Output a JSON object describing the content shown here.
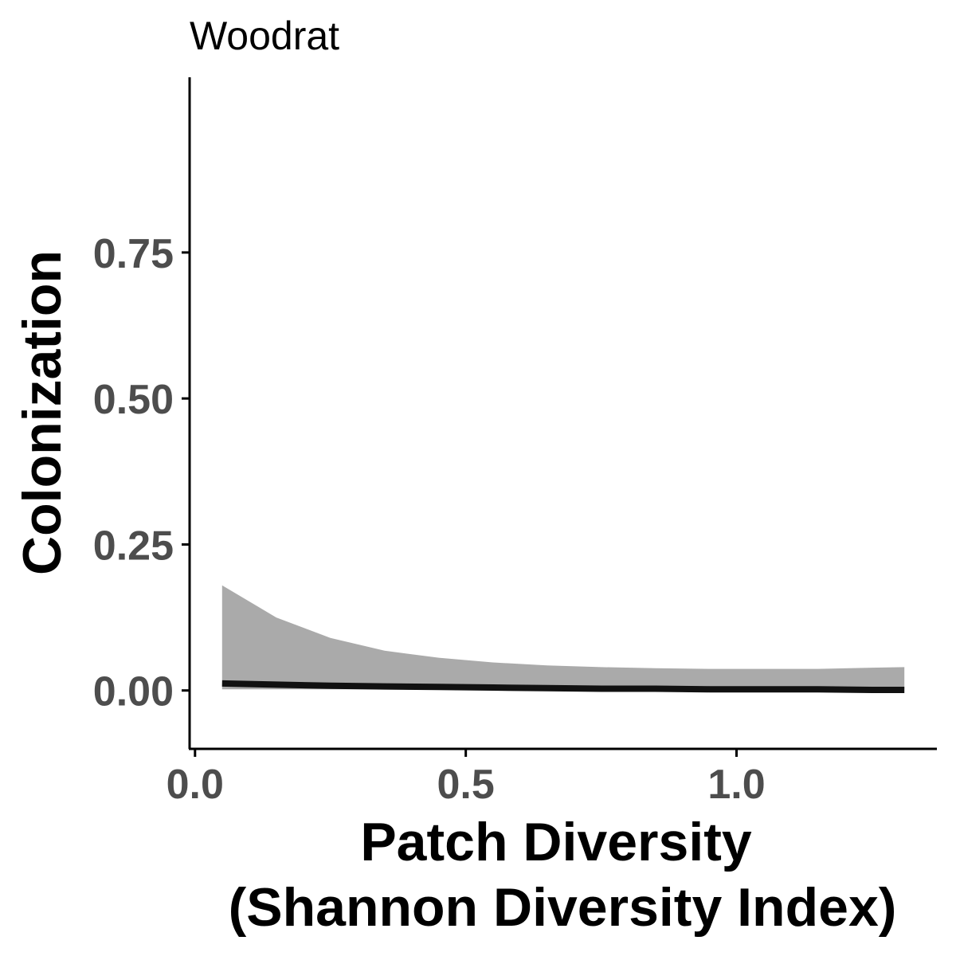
{
  "chart_data": {
    "type": "line",
    "title": "Woodrat",
    "xlabel_lines": [
      "Patch Diversity",
      "(Shannon Diversity Index)"
    ],
    "ylabel": "Colonization",
    "xlim": [
      -0.01,
      1.37
    ],
    "ylim": [
      -0.1,
      1.05
    ],
    "x_ticks": [
      0.0,
      0.5,
      1.0
    ],
    "x_tick_labels": [
      "0.0",
      "0.5",
      "1.0"
    ],
    "y_ticks": [
      0.0,
      0.25,
      0.5,
      0.75
    ],
    "y_tick_labels": [
      "0.00",
      "0.25",
      "0.50",
      "0.75"
    ],
    "grid": false,
    "legend": "none",
    "series": [
      {
        "x": [
          0.05,
          0.15,
          0.25,
          0.35,
          0.45,
          0.55,
          0.65,
          0.75,
          0.85,
          0.95,
          1.05,
          1.15,
          1.25,
          1.31
        ],
        "y": [
          0.012,
          0.01,
          0.008,
          0.007,
          0.006,
          0.005,
          0.004,
          0.003,
          0.003,
          0.002,
          0.002,
          0.002,
          0.001,
          0.001
        ],
        "lower": [
          0.002,
          0.002,
          0.002,
          0.002,
          0.002,
          0.002,
          0.002,
          0.002,
          0.002,
          0.002,
          0.002,
          0.002,
          0.002,
          0.002
        ],
        "upper": [
          0.18,
          0.125,
          0.09,
          0.068,
          0.056,
          0.048,
          0.043,
          0.04,
          0.038,
          0.037,
          0.037,
          0.037,
          0.039,
          0.04
        ]
      }
    ],
    "colors": {
      "line": "#111111",
      "ribbon": "#aaaaaa",
      "axis": "#000000",
      "tick_text": "#4d4d4d"
    }
  }
}
